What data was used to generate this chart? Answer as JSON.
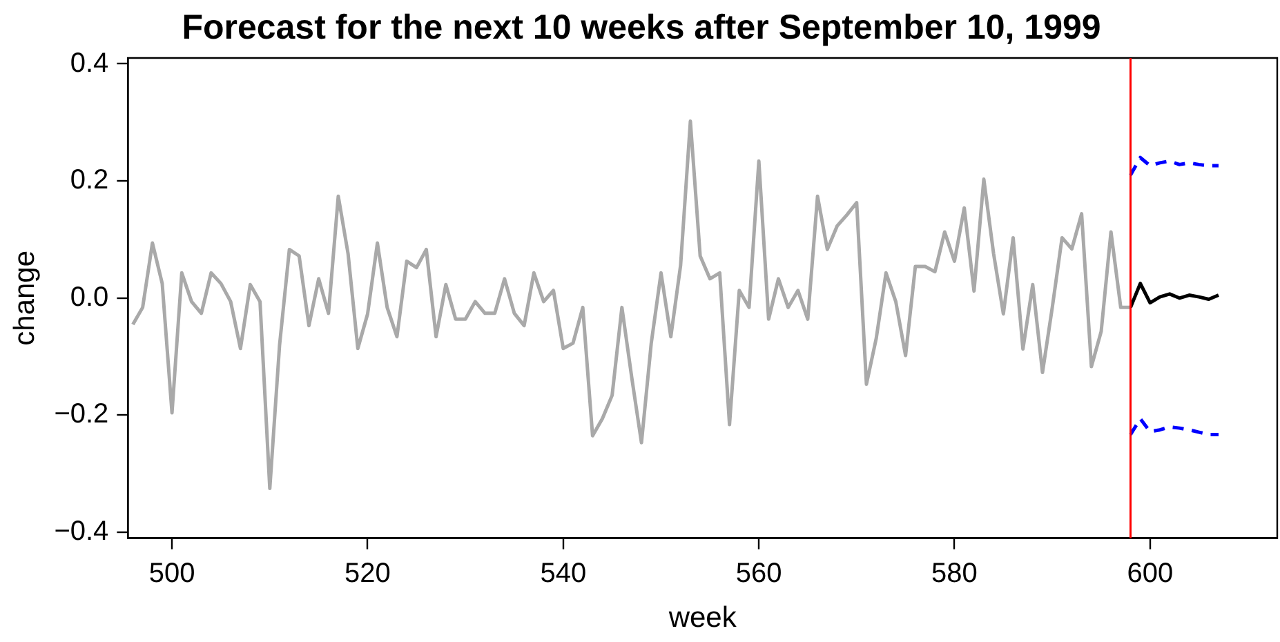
{
  "chart_data": {
    "type": "line",
    "title": "Forecast for the next 10 weeks after September 10, 1999",
    "xlabel": "week",
    "ylabel": "change",
    "series": [
      {
        "color": "#a9a9a9",
        "x": [
          496,
          497,
          498,
          499,
          500,
          501,
          502,
          503,
          504,
          505,
          506,
          507,
          508,
          509,
          510,
          511,
          512,
          513,
          514,
          515,
          516,
          517,
          518,
          519,
          520,
          521,
          522,
          523,
          524,
          525,
          526,
          527,
          528,
          529,
          530,
          531,
          532,
          533,
          534,
          535,
          536,
          537,
          538,
          539,
          540,
          541,
          542,
          543,
          544,
          545,
          546,
          547,
          548,
          549,
          550,
          551,
          552,
          553,
          554,
          555,
          556,
          557,
          558,
          559,
          560,
          561,
          562,
          563,
          564,
          565,
          566,
          567,
          568,
          569,
          570,
          571,
          572,
          573,
          574,
          575,
          576,
          577,
          578,
          579,
          580,
          581,
          582,
          583,
          584,
          585,
          586,
          587,
          588,
          589,
          590,
          591,
          592,
          593,
          594,
          595,
          596,
          597,
          598
        ],
        "values": [
          -0.045,
          -0.016,
          0.094,
          0.025,
          -0.196,
          0.043,
          -0.006,
          -0.026,
          0.043,
          0.025,
          -0.006,
          -0.086,
          0.023,
          -0.006,
          -0.325,
          -0.08,
          0.083,
          0.072,
          -0.047,
          0.033,
          -0.026,
          0.174,
          0.076,
          -0.086,
          -0.027,
          0.094,
          -0.016,
          -0.066,
          0.063,
          0.052,
          0.083,
          -0.066,
          0.023,
          -0.036,
          -0.036,
          -0.006,
          -0.026,
          -0.026,
          0.033,
          -0.026,
          -0.047,
          0.043,
          -0.006,
          0.013,
          -0.086,
          -0.077,
          -0.016,
          -0.235,
          -0.206,
          -0.166,
          -0.016,
          -0.135,
          -0.247,
          -0.077,
          0.043,
          -0.066,
          0.056,
          0.302,
          0.072,
          0.033,
          0.043,
          -0.216,
          0.013,
          -0.016,
          0.234,
          -0.036,
          0.033,
          -0.016,
          0.013,
          -0.036,
          0.174,
          0.083,
          0.123,
          0.142,
          0.163,
          -0.147,
          -0.069,
          0.043,
          -0.006,
          -0.098,
          0.054,
          0.054,
          0.045,
          0.113,
          0.063,
          0.154,
          0.012,
          0.203,
          0.076,
          -0.027,
          0.103,
          -0.087,
          0.023,
          -0.127,
          -0.016,
          0.103,
          0.084,
          0.144,
          -0.117,
          -0.057,
          0.113,
          -0.016,
          -0.016
        ]
      },
      {
        "color": "#000000",
        "x": [
          598,
          599,
          600,
          601,
          602,
          603,
          604,
          605,
          606,
          607
        ],
        "values": [
          -0.016,
          0.025,
          -0.008,
          0.002,
          0.007,
          0.0,
          0.005,
          0.002,
          -0.002,
          0.005
        ]
      },
      {
        "color": "#0000ff",
        "line_style": "dashed",
        "x": [
          598,
          599,
          600,
          601,
          602,
          603,
          604,
          605,
          606,
          607
        ],
        "values": [
          0.21,
          0.24,
          0.226,
          0.231,
          0.234,
          0.228,
          0.231,
          0.228,
          0.226,
          0.226
        ]
      },
      {
        "color": "#0000ff",
        "line_style": "dashed",
        "x": [
          598,
          599,
          600,
          601,
          602,
          603,
          604,
          605,
          606,
          607
        ],
        "values": [
          -0.233,
          -0.206,
          -0.228,
          -0.225,
          -0.22,
          -0.222,
          -0.225,
          -0.229,
          -0.233,
          -0.233
        ]
      }
    ],
    "xlim": [
      495.5,
      613
    ],
    "xticks": [
      500,
      520,
      540,
      560,
      580,
      600
    ],
    "ylim": [
      -0.41,
      0.41
    ],
    "yticks": [
      {
        "value": -0.4,
        "label": "−0.4"
      },
      {
        "value": -0.2,
        "label": "−0.2"
      },
      {
        "value": 0,
        "label": "0.0"
      },
      0.2,
      0.4
    ],
    "ref_lines": [
      {
        "axis": "x",
        "value": 598,
        "color": "#ff0000"
      }
    ],
    "grid": false,
    "legend": false,
    "marker": "none",
    "line_style": "solid"
  }
}
